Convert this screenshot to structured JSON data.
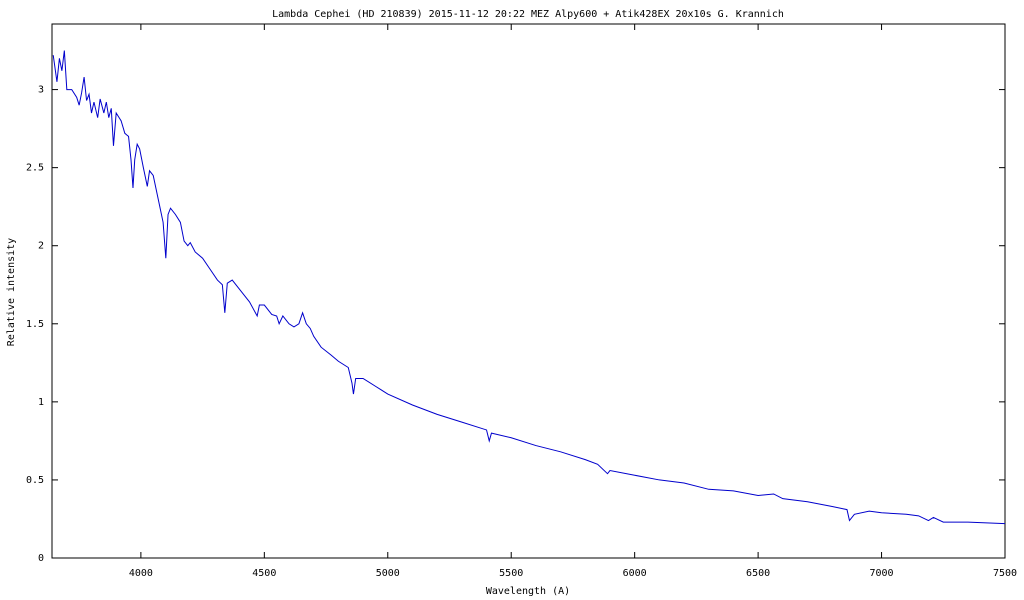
{
  "chart_data": {
    "type": "line",
    "title": "Lambda Cephei  (HD 210839)   2015-11-12 20:22 MEZ  Alpy600 + Atik428EX  20x10s   G. Krannich",
    "x_label": "Wavelength (A)",
    "y_label": "Relative intensity",
    "xlim": [
      3640,
      7500
    ],
    "ylim": [
      0,
      3.42
    ],
    "xticks": [
      4000,
      4500,
      5000,
      5500,
      6000,
      6500,
      7000,
      7500
    ],
    "yticks": [
      0,
      0.5,
      1,
      1.5,
      2,
      2.5,
      3
    ],
    "grid": false,
    "series": [
      {
        "color": "#0000cc",
        "x": [
          3645,
          3660,
          3670,
          3680,
          3690,
          3700,
          3720,
          3740,
          3750,
          3760,
          3770,
          3780,
          3790,
          3800,
          3810,
          3825,
          3835,
          3850,
          3860,
          3870,
          3880,
          3889,
          3900,
          3920,
          3935,
          3950,
          3960,
          3968,
          3975,
          3985,
          3995,
          4010,
          4026,
          4035,
          4050,
          4070,
          4090,
          4101,
          4110,
          4120,
          4140,
          4160,
          4175,
          4190,
          4200,
          4220,
          4250,
          4280,
          4310,
          4330,
          4340,
          4350,
          4370,
          4400,
          4420,
          4440,
          4471,
          4480,
          4500,
          4530,
          4550,
          4560,
          4575,
          4600,
          4620,
          4640,
          4655,
          4670,
          4686,
          4700,
          4730,
          4770,
          4800,
          4840,
          4855,
          4861,
          4870,
          4900,
          4950,
          5000,
          5100,
          5200,
          5300,
          5400,
          5411,
          5420,
          5500,
          5600,
          5700,
          5800,
          5850,
          5890,
          5900,
          6000,
          6100,
          6200,
          6300,
          6400,
          6500,
          6563,
          6600,
          6700,
          6800,
          6860,
          6870,
          6890,
          6950,
          7000,
          7100,
          7150,
          7190,
          7210,
          7250,
          7350,
          7500
        ],
        "values": [
          3.22,
          3.05,
          3.2,
          3.12,
          3.25,
          3.0,
          3.0,
          2.95,
          2.9,
          2.98,
          3.08,
          2.93,
          2.97,
          2.85,
          2.92,
          2.82,
          2.94,
          2.85,
          2.92,
          2.82,
          2.88,
          2.64,
          2.85,
          2.8,
          2.72,
          2.7,
          2.55,
          2.37,
          2.55,
          2.65,
          2.62,
          2.5,
          2.38,
          2.48,
          2.45,
          2.3,
          2.15,
          1.92,
          2.2,
          2.24,
          2.2,
          2.15,
          2.03,
          2.0,
          2.02,
          1.96,
          1.92,
          1.85,
          1.78,
          1.75,
          1.57,
          1.76,
          1.78,
          1.72,
          1.68,
          1.64,
          1.55,
          1.62,
          1.62,
          1.56,
          1.55,
          1.5,
          1.55,
          1.5,
          1.48,
          1.5,
          1.57,
          1.5,
          1.47,
          1.42,
          1.35,
          1.3,
          1.26,
          1.22,
          1.12,
          1.05,
          1.15,
          1.15,
          1.1,
          1.05,
          0.98,
          0.92,
          0.87,
          0.82,
          0.75,
          0.8,
          0.77,
          0.72,
          0.68,
          0.63,
          0.6,
          0.54,
          0.56,
          0.53,
          0.5,
          0.48,
          0.44,
          0.43,
          0.4,
          0.41,
          0.38,
          0.36,
          0.33,
          0.31,
          0.24,
          0.28,
          0.3,
          0.29,
          0.28,
          0.27,
          0.24,
          0.26,
          0.23,
          0.23,
          0.22
        ]
      }
    ]
  }
}
